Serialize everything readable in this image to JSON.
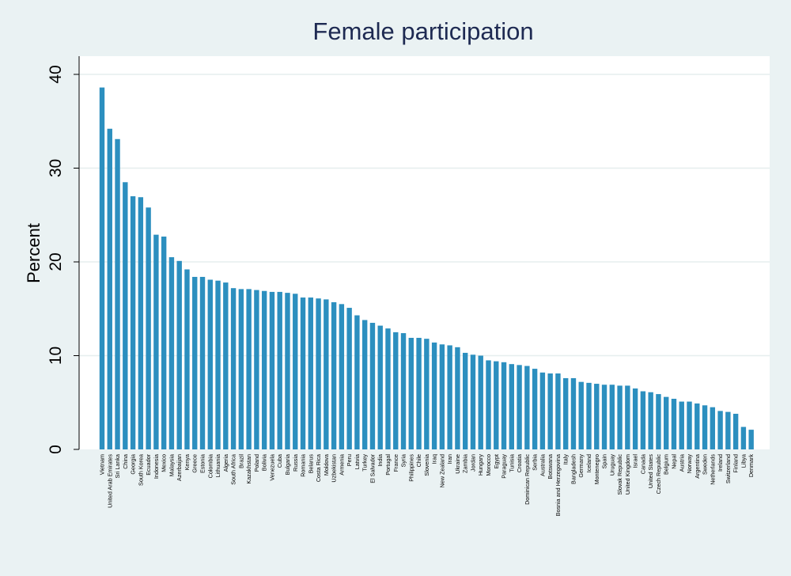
{
  "chart_data": {
    "type": "bar",
    "title": "Female participation",
    "xlabel": "",
    "ylabel": "Percent",
    "ylim": [
      0,
      42
    ],
    "yticks": [
      0,
      10,
      20,
      30,
      40
    ],
    "grid": true,
    "colors": {
      "bar": "#2c8fbf",
      "plot_bg": "#ffffff",
      "page_bg": "#eaf2f3",
      "grid": "#e6eeee",
      "title": "#1e2a52"
    },
    "categories": [
      "Vietnam",
      "United Arab Emirates",
      "Sri Lanka",
      "China",
      "Georgia",
      "South Korea",
      "Ecuador",
      "Indonesia",
      "Mexico",
      "Malaysia",
      "Azerbaijan",
      "Kenya",
      "Greece",
      "Estonia",
      "Colombia",
      "Lithuania",
      "Algeria",
      "South Africa",
      "Brazil",
      "Kazakhstan",
      "Poland",
      "Bolivia",
      "Venezuela",
      "Cuba",
      "Bulgaria",
      "Russia",
      "Romania",
      "Belarus",
      "Costa Rica",
      "Moldova",
      "Uzbekistan",
      "Armenia",
      "Peru",
      "Latvia",
      "Turkey",
      "El Salvador",
      "India",
      "Portugal",
      "France",
      "Syria",
      "Philippines",
      "Chile",
      "Slovenia",
      "Iraq",
      "New Zealand",
      "Iran",
      "Ukraine",
      "Zambia",
      "Jordan",
      "Hungary",
      "Morocco",
      "Egypt",
      "Paraguay",
      "Tunisia",
      "Croatia",
      "Dominican Republic",
      "Serbia",
      "Australia",
      "Botswana",
      "Bosnia and Herzegovina",
      "Italy",
      "Bangladesh",
      "Germany",
      "Iceland",
      "Montenegro",
      "Spain",
      "Uruguay",
      "Slovak Republic",
      "United Kingdom",
      "Israel",
      "Canada",
      "United States",
      "Czech Republic",
      "Belgium",
      "Nepal",
      "Austria",
      "Norway",
      "Argentina",
      "Sweden",
      "Netherlands",
      "Ireland",
      "Switzerland",
      "Finland",
      "Libya",
      "Denmark"
    ],
    "values": [
      38.6,
      34.2,
      33.1,
      28.5,
      27.0,
      26.9,
      25.8,
      22.9,
      22.7,
      20.5,
      20.1,
      19.2,
      18.4,
      18.4,
      18.1,
      18.0,
      17.8,
      17.2,
      17.1,
      17.1,
      17.0,
      16.9,
      16.8,
      16.8,
      16.7,
      16.6,
      16.2,
      16.2,
      16.1,
      16.0,
      15.7,
      15.5,
      15.1,
      14.3,
      13.8,
      13.5,
      13.2,
      12.9,
      12.5,
      12.4,
      11.9,
      11.9,
      11.8,
      11.4,
      11.2,
      11.1,
      10.9,
      10.3,
      10.1,
      10.0,
      9.5,
      9.4,
      9.3,
      9.1,
      9.0,
      8.9,
      8.6,
      8.2,
      8.1,
      8.1,
      7.6,
      7.6,
      7.2,
      7.1,
      7.0,
      6.9,
      6.9,
      6.8,
      6.8,
      6.5,
      6.2,
      6.1,
      5.9,
      5.6,
      5.4,
      5.1,
      5.1,
      4.9,
      4.7,
      4.5,
      4.1,
      4.0,
      3.8,
      2.4,
      2.1
    ]
  }
}
